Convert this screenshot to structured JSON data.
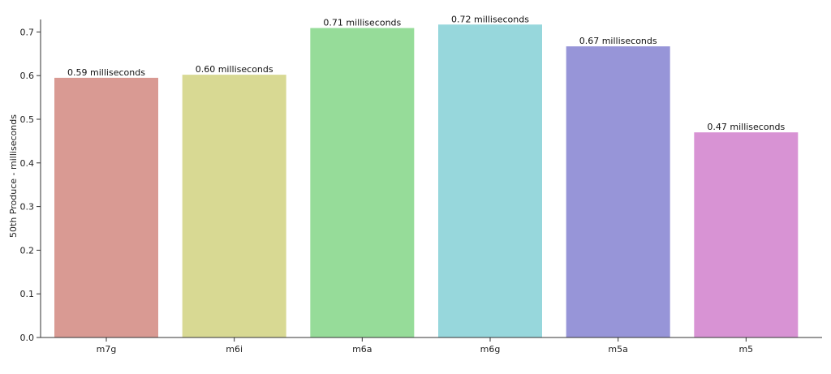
{
  "chart_data": {
    "type": "bar",
    "title": "",
    "xlabel": "",
    "ylabel": "50th Produce - milliseconds",
    "ylim": [
      0,
      0.75
    ],
    "yticks": [
      "0.0",
      "0.1",
      "0.2",
      "0.3",
      "0.4",
      "0.5",
      "0.6",
      "0.7"
    ],
    "yticks_values": [
      0,
      0.1,
      0.2,
      0.3,
      0.4,
      0.5,
      0.6,
      0.7
    ],
    "categories": [
      "m7g",
      "m6i",
      "m6a",
      "m6g",
      "m5a",
      "m5"
    ],
    "values": [
      0.595,
      0.602,
      0.709,
      0.717,
      0.667,
      0.47
    ],
    "labels": [
      "0.59 milliseconds",
      "0.60 milliseconds",
      "0.71 milliseconds",
      "0.72 milliseconds",
      "0.67 milliseconds",
      "0.47 milliseconds"
    ],
    "colors": [
      "#d99a93",
      "#d8d993",
      "#96dc99",
      "#97d7dc",
      "#9795d8",
      "#d893d4"
    ],
    "grid": false,
    "legend": "none"
  }
}
